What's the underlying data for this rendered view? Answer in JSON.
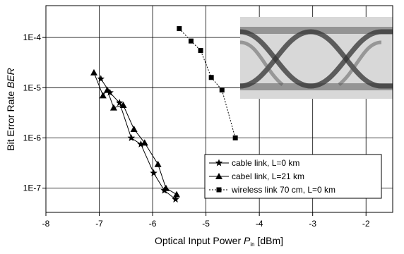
{
  "chart_data": {
    "type": "line",
    "xlabel": {
      "text": "Optical Input Power ",
      "symbol": "P",
      "subscript": "in",
      "unit": " [dBm]"
    },
    "ylabel": {
      "text": "Bit Error Rate ",
      "symbol": "BER"
    },
    "xlim": [
      -8,
      -1.5
    ],
    "xticks": [
      -8,
      -7,
      -6,
      -5,
      -4,
      -3,
      -2
    ],
    "ylim": [
      3.3e-08,
      0.00043
    ],
    "log_y": true,
    "yticks": [
      {
        "value": 1e-07,
        "label": "1E-7"
      },
      {
        "value": 1e-06,
        "label": "1E-6"
      },
      {
        "value": 1e-05,
        "label": "1E-5"
      },
      {
        "value": 0.0001,
        "label": "1E-4"
      }
    ],
    "grid": true,
    "legend": "lower right",
    "series": [
      {
        "name": "cable link, L=0 km",
        "color": "#000000",
        "marker": "star",
        "dash": "solid",
        "x": [
          -6.97,
          -6.8,
          -6.62,
          -6.4,
          -6.22,
          -5.98,
          -5.78,
          -5.57
        ],
        "values": [
          1.5e-05,
          8e-06,
          5e-06,
          1e-06,
          7.5e-07,
          2e-07,
          9e-08,
          6e-08
        ]
      },
      {
        "name": "cabel link, L=21 km",
        "color": "#000000",
        "marker": "triangle",
        "dash": "solid",
        "x": [
          -7.1,
          -6.93,
          -6.85,
          -6.73,
          -6.55,
          -6.35,
          -6.15,
          -5.9,
          -5.75,
          -5.55
        ],
        "values": [
          2e-05,
          7e-06,
          9e-06,
          4e-06,
          4.5e-06,
          1.5e-06,
          8e-07,
          3e-07,
          1e-07,
          7.5e-08
        ]
      },
      {
        "name": "wireless link 70 cm, L=0 km",
        "color": "#000000",
        "marker": "square",
        "dash": "dotted",
        "x": [
          -5.5,
          -5.28,
          -5.1,
          -4.9,
          -4.7,
          -4.45
        ],
        "values": [
          0.00015,
          8.5e-05,
          5.5e-05,
          1.6e-05,
          9e-06,
          1e-06
        ]
      }
    ]
  }
}
